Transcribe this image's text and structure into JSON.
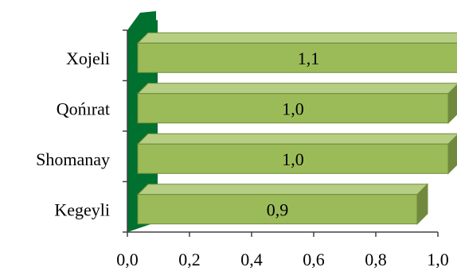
{
  "chart_data": {
    "type": "bar",
    "orientation": "horizontal",
    "style": "3d",
    "categories": [
      "Xojeli",
      "Qońırat",
      "Shomanay",
      "Kegeyli"
    ],
    "values": [
      1.1,
      1.0,
      1.0,
      0.9
    ],
    "value_labels": [
      "1,1",
      "1,0",
      "1,0",
      "0,9"
    ],
    "title": "",
    "xlabel": "",
    "ylabel": "",
    "xlim": [
      0,
      1.0
    ],
    "x_ticks": [
      0,
      0.2,
      0.4,
      0.6,
      0.8,
      1.0
    ],
    "x_tick_labels": [
      "0,0",
      "0,2",
      "0,4",
      "0,6",
      "0,8",
      "1,0"
    ],
    "grid": false,
    "legend": "none",
    "colors": {
      "bar_front": "#9BBB59",
      "bar_top": "#B6CE82",
      "bar_side": "#71893F",
      "bar_edge": "#6E8A3A",
      "wall": "#00702F",
      "axis": "#404040"
    }
  }
}
